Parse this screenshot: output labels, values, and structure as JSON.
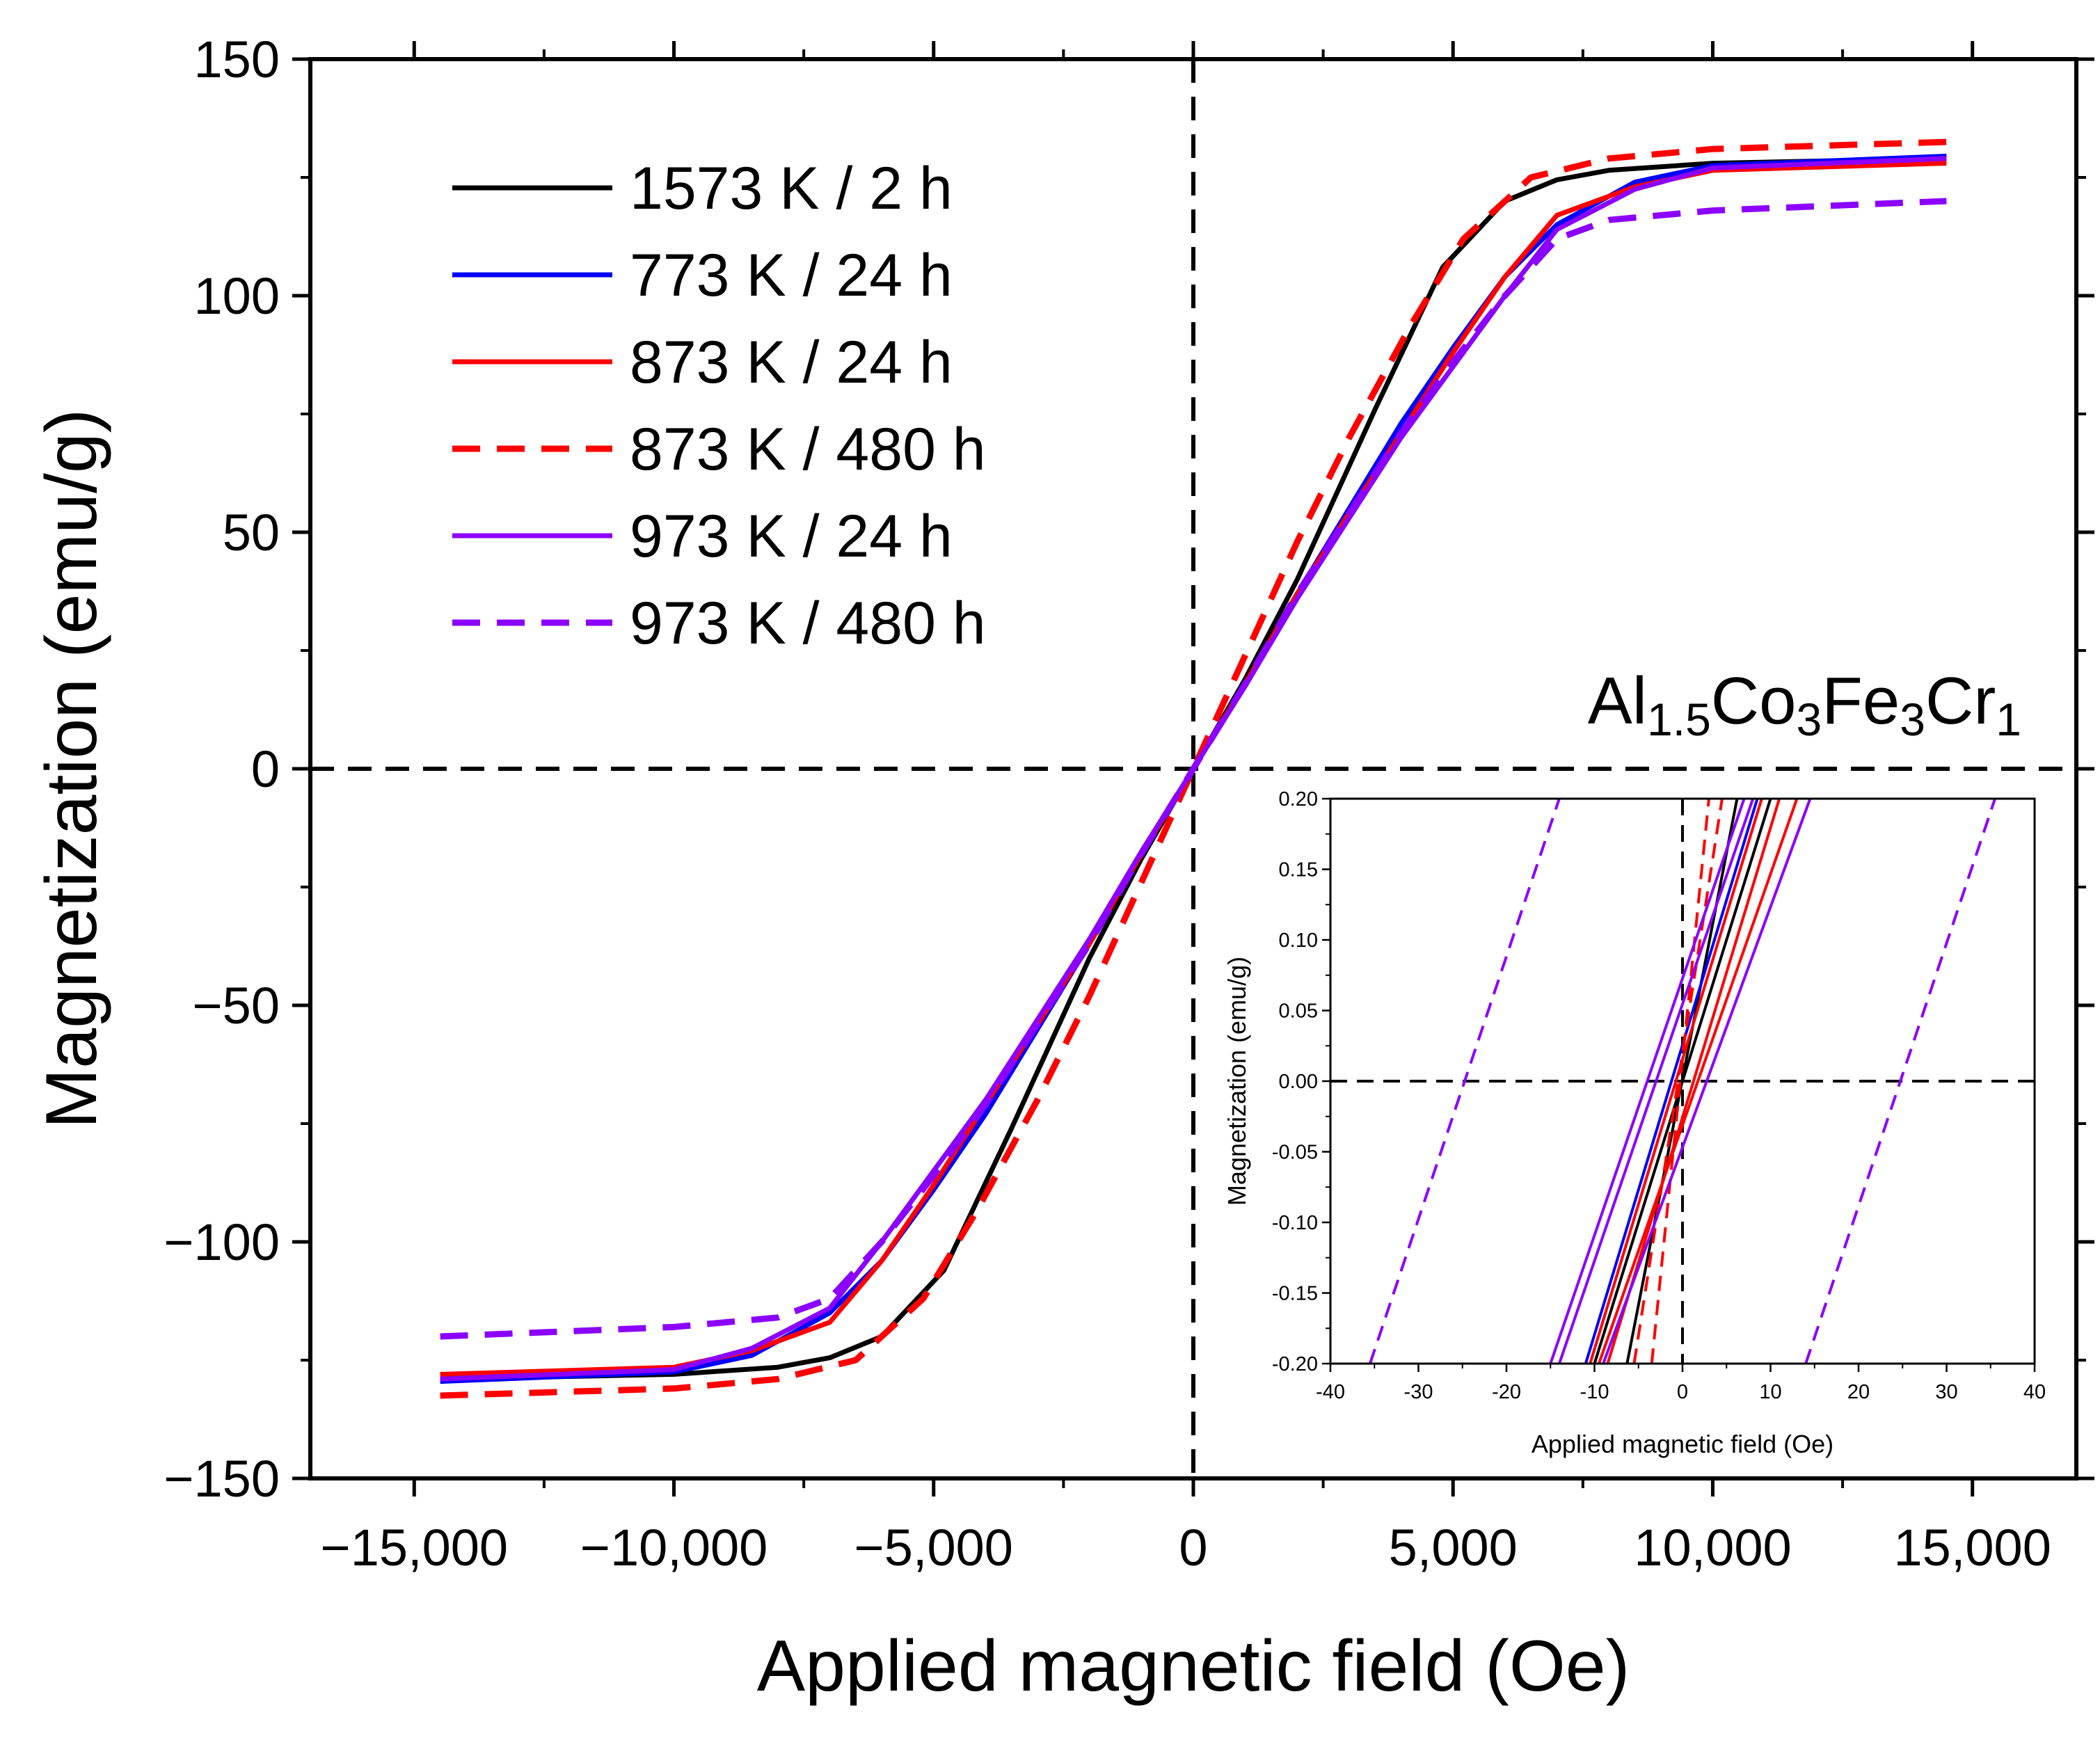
{
  "chart_data": [
    {
      "type": "line",
      "title": "",
      "xlabel": "Applied magnetic field (Oe)",
      "ylabel": "Magnetization (emu/g)",
      "xlim": [
        -17000,
        17000
      ],
      "ylim": [
        -150,
        150
      ],
      "xticks": [
        -15000,
        -10000,
        -5000,
        0,
        5000,
        10000,
        15000
      ],
      "xtick_labels": [
        "−15,000",
        "−10,000",
        "−5,000",
        "0",
        "5,000",
        "10,000",
        "15,000"
      ],
      "yticks": [
        -150,
        -100,
        -50,
        0,
        50,
        100,
        150
      ],
      "ytick_labels": [
        "−150",
        "−100",
        "−50",
        "0",
        "50",
        "100",
        "150"
      ],
      "grid": false,
      "legend_position": "top-left",
      "reference_lines": "dashed lines at x = 0 and y = 0",
      "annotation": {
        "text_parts": [
          {
            "t": "Al",
            "sub": false
          },
          {
            "t": "1.5",
            "sub": true
          },
          {
            "t": "Co",
            "sub": false
          },
          {
            "t": "3",
            "sub": true
          },
          {
            "t": "Fe",
            "sub": false
          },
          {
            "t": "3",
            "sub": true
          },
          {
            "t": "Cr",
            "sub": false
          },
          {
            "t": "1",
            "sub": true
          }
        ]
      },
      "series": [
        {
          "name": "1573 K / 2 h",
          "color": "#000000",
          "dash": "solid",
          "x": [
            -14500,
            -10000,
            -8000,
            -7000,
            -6000,
            -4800,
            -3500,
            -2000,
            -1000,
            0,
            1000,
            2000,
            3500,
            4800,
            6000,
            7000,
            8000,
            10000,
            14500
          ],
          "y": [
            -129,
            -128,
            -126.5,
            -124.5,
            -120,
            -106,
            -76,
            -40,
            -19,
            0,
            19,
            40,
            76,
            106,
            120,
            124.5,
            126.5,
            128,
            129
          ]
        },
        {
          "name": "773 K / 24 h",
          "color": "#0000ff",
          "dash": "solid",
          "x": [
            -14500,
            -10000,
            -8500,
            -7000,
            -6000,
            -5000,
            -4000,
            -3000,
            -2000,
            -1000,
            0,
            1000,
            2000,
            3000,
            4000,
            5000,
            6000,
            7000,
            8500,
            10000,
            14500
          ],
          "y": [
            -129.5,
            -127.5,
            -124,
            -115,
            -104,
            -89,
            -73,
            -55,
            -37,
            -18,
            0,
            18,
            37,
            55,
            73,
            89,
            104,
            115,
            124,
            127.5,
            129.5
          ]
        },
        {
          "name": "873 K / 24 h",
          "color": "#ff0000",
          "dash": "solid",
          "x": [
            -14500,
            -10000,
            -8500,
            -7000,
            -6000,
            -5000,
            -4000,
            -3000,
            -2000,
            -1000,
            0,
            1000,
            2000,
            3000,
            4000,
            5000,
            6000,
            7000,
            8500,
            10000,
            14500
          ],
          "y": [
            -128,
            -126.5,
            -123,
            -117,
            -104,
            -88,
            -71,
            -54,
            -37,
            -18,
            0,
            18,
            37,
            54,
            71,
            88,
            104,
            117,
            123,
            126.5,
            128
          ]
        },
        {
          "name": "873 K / 480 h",
          "color": "#ff0000",
          "dash": "dashed",
          "x": [
            -14500,
            -10000,
            -8000,
            -6500,
            -5200,
            -4200,
            -3000,
            -2000,
            -1000,
            0,
            1000,
            2000,
            3000,
            4200,
            5200,
            6500,
            8000,
            10000,
            14500
          ],
          "y": [
            -132.5,
            -131,
            -129,
            -125,
            -112,
            -94,
            -70,
            -48,
            -24,
            0,
            24,
            48,
            70,
            94,
            112,
            125,
            129,
            131,
            132.5
          ]
        },
        {
          "name": "973 K / 24 h",
          "color": "#8b00ff",
          "dash": "solid",
          "x": [
            -14500,
            -10000,
            -8500,
            -7000,
            -6000,
            -5000,
            -4000,
            -3000,
            -2000,
            -1000,
            0,
            1000,
            2000,
            3000,
            4000,
            5000,
            6000,
            7000,
            8500,
            10000,
            14500
          ],
          "y": [
            -129,
            -127,
            -122.5,
            -114,
            -100,
            -85,
            -70,
            -53,
            -36,
            -17.5,
            0,
            17.5,
            36,
            53,
            70,
            85,
            100,
            114,
            122.5,
            127,
            129
          ]
        },
        {
          "name": "973 K / 480 h",
          "color": "#8b00ff",
          "dash": "dashed",
          "x": [
            -14500,
            -10000,
            -8000,
            -7000,
            -6000,
            -5000,
            -4000,
            -3000,
            -2000,
            -1000,
            0,
            1000,
            2000,
            3000,
            4000,
            5000,
            6000,
            7000,
            8000,
            10000,
            14500
          ],
          "y": [
            -120,
            -118,
            -116,
            -112,
            -100,
            -86,
            -71,
            -54,
            -37,
            -18,
            0,
            18,
            37,
            54,
            71,
            86,
            100,
            112,
            116,
            118,
            120
          ]
        }
      ]
    },
    {
      "type": "line",
      "title": "",
      "xlabel": "Applied magnetic field (Oe)",
      "ylabel": "Magnetization (emu/g)",
      "xlim": [
        -40,
        40
      ],
      "ylim": [
        -0.2,
        0.2
      ],
      "xticks": [
        -40,
        -30,
        -20,
        -10,
        0,
        10,
        20,
        30,
        40
      ],
      "xtick_labels": [
        "-40",
        "-30",
        "-20",
        "-10",
        "0",
        "10",
        "20",
        "30",
        "40"
      ],
      "yticks": [
        -0.2,
        -0.15,
        -0.1,
        -0.05,
        0.0,
        0.05,
        0.1,
        0.15,
        0.2
      ],
      "ytick_labels": [
        "-0.20",
        "-0.15",
        "-0.10",
        "-0.05",
        "0.00",
        "0.05",
        "0.10",
        "0.15",
        "0.20"
      ],
      "grid": false,
      "legend_position": "none",
      "reference_lines": "dashed lines at x = 0 and y = 0",
      "series": [
        {
          "name": "",
          "color": "#000000",
          "dash": "solid",
          "x": [
            -6.3,
            6.2
          ],
          "y": [
            -0.2,
            0.2
          ]
        },
        {
          "name": "",
          "color": "#000000",
          "dash": "solid",
          "x": [
            -10,
            10
          ],
          "y": [
            -0.2,
            0.2
          ]
        },
        {
          "name": "",
          "color": "#0000ff",
          "dash": "solid",
          "x": [
            -11,
            8.5
          ],
          "y": [
            -0.2,
            0.2
          ]
        },
        {
          "name": "",
          "color": "#ff0000",
          "dash": "solid",
          "x": [
            -10.5,
            9
          ],
          "y": [
            -0.2,
            0.2
          ]
        },
        {
          "name": "",
          "color": "#ff0000",
          "dash": "solid",
          "x": [
            -8.5,
            11
          ],
          "y": [
            -0.2,
            0.2
          ]
        },
        {
          "name": "",
          "color": "#ff0000",
          "dash": "solid",
          "x": [
            -9.5,
            13
          ],
          "y": [
            -0.2,
            0.2
          ]
        },
        {
          "name": "",
          "color": "#ff0000",
          "dash": "dashed",
          "x": [
            -5.5,
            4.5
          ],
          "y": [
            -0.2,
            0.2
          ]
        },
        {
          "name": "",
          "color": "#ff0000",
          "dash": "dashed",
          "x": [
            -3.5,
            3
          ],
          "y": [
            -0.2,
            0.2
          ]
        },
        {
          "name": "",
          "color": "#8b00ff",
          "dash": "solid",
          "x": [
            -14,
            8
          ],
          "y": [
            -0.2,
            0.2
          ]
        },
        {
          "name": "",
          "color": "#8b00ff",
          "dash": "solid",
          "x": [
            -15,
            7
          ],
          "y": [
            -0.2,
            0.2
          ]
        },
        {
          "name": "",
          "color": "#8b00ff",
          "dash": "solid",
          "x": [
            -9,
            14.5
          ],
          "y": [
            -0.2,
            0.2
          ]
        },
        {
          "name": "",
          "color": "#8b00ff",
          "dash": "dashed",
          "x": [
            -35.5,
            -14
          ],
          "y": [
            -0.2,
            0.2
          ]
        },
        {
          "name": "",
          "color": "#8b00ff",
          "dash": "dashed",
          "x": [
            14,
            35.5
          ],
          "y": [
            -0.2,
            0.2
          ]
        }
      ]
    }
  ]
}
